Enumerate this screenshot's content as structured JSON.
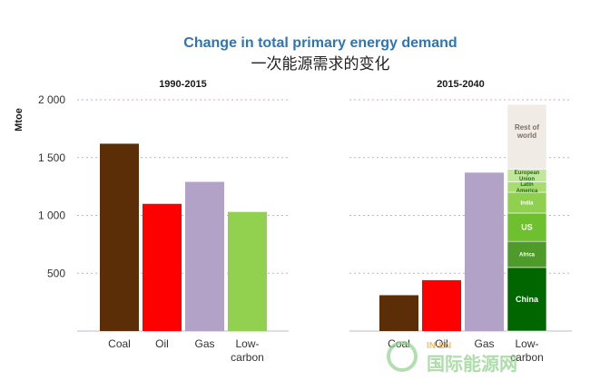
{
  "title_en": "Change in total primary energy demand",
  "title_cn": "一次能源需求的变化",
  "watermark": {
    "cn": "国际能源网",
    "en": "IN-EN"
  },
  "chart_data": [
    {
      "type": "bar",
      "title": "1990-2015",
      "ylabel": "Mtoe",
      "ylim": [
        0,
        2000
      ],
      "yticks": [
        500,
        1000,
        1500,
        2000
      ],
      "ytick_labels": [
        "500",
        "1 000",
        "1 500",
        "2 000"
      ],
      "grid": true,
      "categories": [
        "Coal",
        "Oil",
        "Gas",
        "Low-carbon"
      ],
      "values": [
        1620,
        1100,
        1290,
        1030
      ],
      "colors": [
        "#5c2e07",
        "#ff0000",
        "#b3a2c7",
        "#92d050"
      ]
    },
    {
      "type": "bar",
      "title": "2015-2040",
      "ylim": [
        0,
        2000
      ],
      "yticks": [
        500,
        1000,
        1500,
        2000
      ],
      "grid": true,
      "categories": [
        "Coal",
        "Oil",
        "Gas",
        "Low-carbon"
      ],
      "values": [
        310,
        440,
        1370,
        null
      ],
      "colors": [
        "#5c2e07",
        "#ff0000",
        "#b3a2c7",
        null
      ],
      "stacked": {
        "category": "Low-carbon",
        "segments": [
          {
            "label": "China",
            "value": 550,
            "color": "#006600",
            "text_color": "#ffffff"
          },
          {
            "label": "Africa",
            "value": 225,
            "color": "#4e9a2a",
            "text_color": "#ffffff"
          },
          {
            "label": "US",
            "value": 245,
            "color": "#6ec02f",
            "text_color": "#ffffff"
          },
          {
            "label": "India",
            "value": 180,
            "color": "#8fd14f",
            "text_color": "#ffffff"
          },
          {
            "label": "Latin America",
            "value": 90,
            "color": "#a9dc6e",
            "text_color": "#1f6b1f"
          },
          {
            "label": "European Union",
            "value": 110,
            "color": "#c2e69a",
            "text_color": "#1f6b1f"
          },
          {
            "label": "Rest of world",
            "value": 560,
            "color": "#f0ebe5",
            "text_color": "#7a6f66"
          }
        ]
      }
    }
  ]
}
